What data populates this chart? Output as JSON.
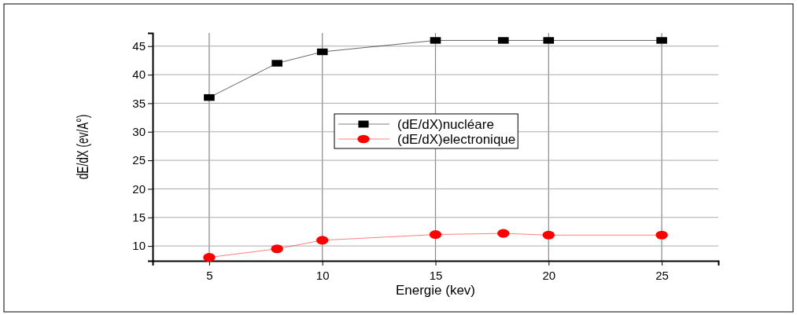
{
  "chart_data": {
    "type": "line",
    "xlabel": "Energie (kev)",
    "ylabel": "dE/dX (ev/A°)",
    "xlim": [
      2.5,
      27.5
    ],
    "xticks": [
      5,
      10,
      15,
      20,
      25
    ],
    "ylim": [
      7.4,
      47.3
    ],
    "yticks": [
      10,
      15,
      20,
      25,
      30,
      35,
      40,
      45
    ],
    "grid": true,
    "legend": "center",
    "line_style": "solid",
    "series": [
      {
        "name": "(dE/dX)nucléare",
        "color": "#000000",
        "marker": "square",
        "x": [
          5,
          8,
          10,
          15,
          18,
          20,
          25
        ],
        "values": [
          36,
          42,
          44,
          46,
          46,
          46,
          46
        ]
      },
      {
        "name": "(dE/dX)electronique",
        "color": "#ff0000",
        "marker": "circle",
        "x": [
          5,
          8,
          10,
          15,
          18,
          20,
          25
        ],
        "values": [
          8,
          9.5,
          11,
          12,
          12.2,
          11.9,
          11.9
        ]
      }
    ]
  }
}
